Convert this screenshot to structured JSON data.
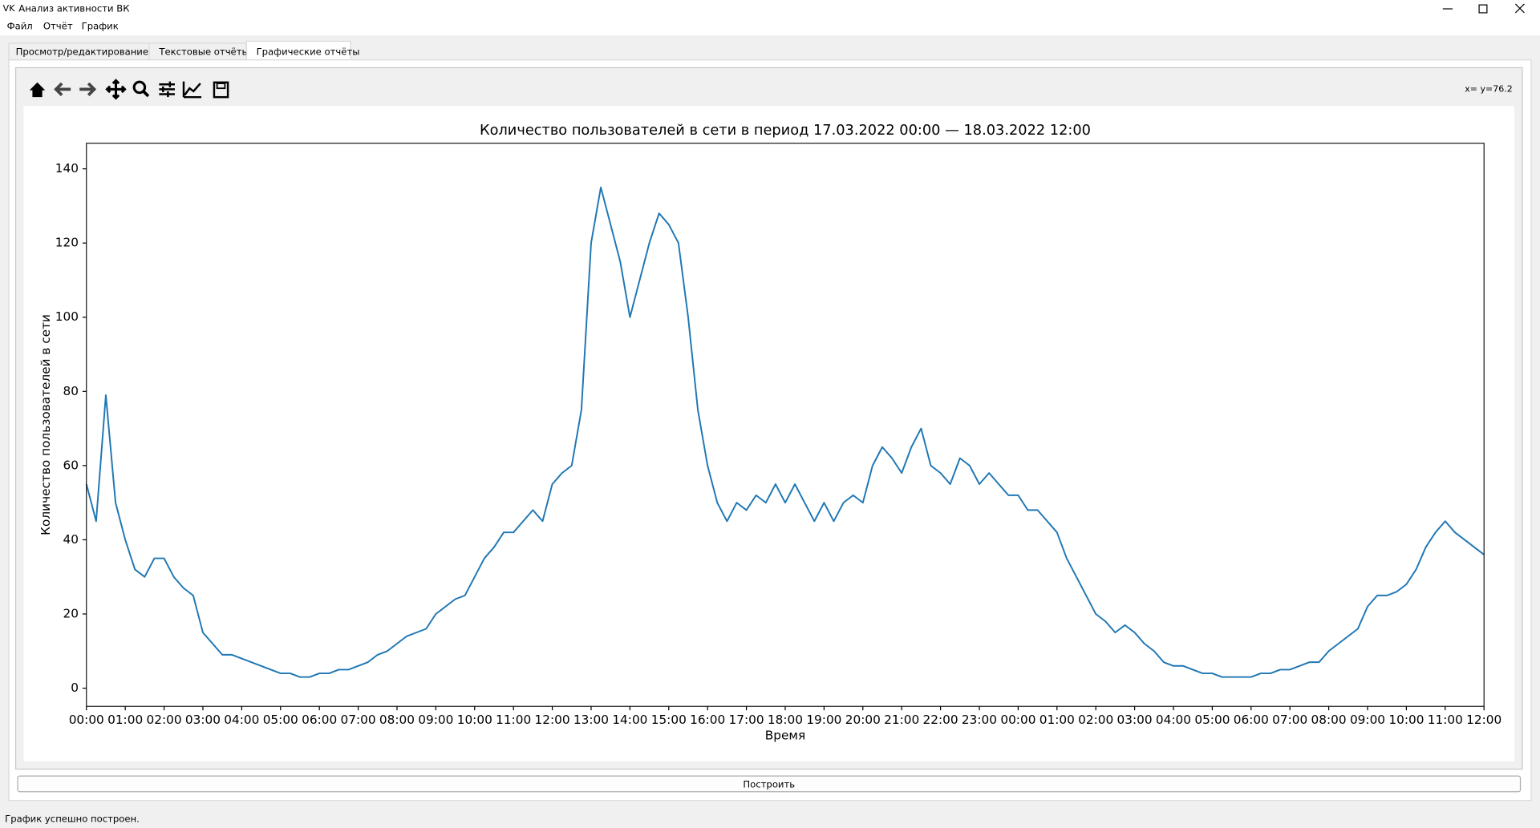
{
  "window": {
    "title": "Анализ активности ВК"
  },
  "menu": [
    "Файл",
    "Отчёт",
    "График"
  ],
  "tabs": [
    "Просмотр/редактирование БД",
    "Текстовые отчёты",
    "Графические отчёты"
  ],
  "toolbar": {
    "coordinates": "x= y=76.2"
  },
  "chart_data": {
    "type": "line",
    "title": "Количество пользователей в сети в период 17.03.2022 00:00 — 18.03.2022 12:00",
    "xlabel": "Время",
    "ylabel": "Количество пользователей в сети",
    "color": "#1f77b4",
    "x": [
      0,
      0.25,
      0.5,
      0.75,
      1,
      1.25,
      1.5,
      1.75,
      2,
      2.25,
      2.5,
      2.75,
      3,
      3.25,
      3.5,
      3.75,
      4,
      4.25,
      4.5,
      4.75,
      5,
      5.25,
      5.5,
      5.75,
      6,
      6.25,
      6.5,
      6.75,
      7,
      7.25,
      7.5,
      7.75,
      8,
      8.25,
      8.5,
      8.75,
      9,
      9.25,
      9.5,
      9.75,
      10,
      10.25,
      10.5,
      10.75,
      11,
      11.25,
      11.5,
      11.75,
      12,
      12.25,
      12.5,
      12.75,
      13,
      13.25,
      13.5,
      13.75,
      14,
      14.25,
      14.5,
      14.75,
      15,
      15.25,
      15.5,
      15.75,
      16,
      16.25,
      16.5,
      16.75,
      17,
      17.25,
      17.5,
      17.75,
      18,
      18.25,
      18.5,
      18.75,
      19,
      19.25,
      19.5,
      19.75,
      20,
      20.25,
      20.5,
      20.75,
      21,
      21.25,
      21.5,
      21.75,
      22,
      22.25,
      22.5,
      22.75,
      23,
      23.25,
      23.5,
      23.75,
      24,
      24.25,
      24.5,
      24.75,
      25,
      25.25,
      25.5,
      25.75,
      26,
      26.25,
      26.5,
      26.75,
      27,
      27.25,
      27.5,
      27.75,
      28,
      28.25,
      28.5,
      28.75,
      29,
      29.25,
      29.5,
      29.75,
      30,
      30.25,
      30.5,
      30.75,
      31,
      31.25,
      31.5,
      31.75,
      32,
      32.25,
      32.5,
      32.75,
      33,
      33.25,
      33.5,
      33.75,
      34,
      34.25,
      34.5,
      34.75,
      35,
      35.25,
      35.5,
      35.75,
      36
    ],
    "values": [
      55,
      45,
      79,
      50,
      40,
      32,
      30,
      35,
      35,
      30,
      27,
      25,
      15,
      12,
      9,
      9,
      8,
      7,
      6,
      5,
      4,
      4,
      3,
      3,
      4,
      4,
      5,
      5,
      6,
      7,
      9,
      10,
      12,
      14,
      15,
      16,
      20,
      22,
      24,
      25,
      30,
      35,
      38,
      42,
      42,
      45,
      48,
      45,
      55,
      58,
      60,
      75,
      120,
      135,
      125,
      115,
      100,
      110,
      120,
      128,
      125,
      120,
      100,
      75,
      60,
      50,
      45,
      50,
      48,
      52,
      50,
      55,
      50,
      55,
      50,
      45,
      50,
      45,
      50,
      52,
      50,
      60,
      65,
      62,
      58,
      65,
      70,
      60,
      58,
      55,
      62,
      60,
      55,
      58,
      55,
      52,
      52,
      48,
      48,
      45,
      42,
      35,
      30,
      25,
      20,
      18,
      15,
      17,
      15,
      12,
      10,
      7,
      6,
      6,
      5,
      4,
      4,
      3,
      3,
      3,
      3,
      4,
      4,
      5,
      5,
      6,
      7,
      7,
      10,
      12,
      14,
      16,
      22,
      25,
      25,
      26,
      28,
      32,
      38,
      42,
      45,
      42,
      40,
      38,
      36
    ],
    "xlim": [
      0,
      36
    ],
    "ylim": [
      -4.9,
      146.9
    ],
    "xticks": [
      {
        "value": 0,
        "label": "00:00"
      },
      {
        "value": 1,
        "label": "01:00"
      },
      {
        "value": 2,
        "label": "02:00"
      },
      {
        "value": 3,
        "label": "03:00"
      },
      {
        "value": 4,
        "label": "04:00"
      },
      {
        "value": 5,
        "label": "05:00"
      },
      {
        "value": 6,
        "label": "06:00"
      },
      {
        "value": 7,
        "label": "07:00"
      },
      {
        "value": 8,
        "label": "08:00"
      },
      {
        "value": 9,
        "label": "09:00"
      },
      {
        "value": 10,
        "label": "10:00"
      },
      {
        "value": 11,
        "label": "11:00"
      },
      {
        "value": 12,
        "label": "12:00"
      },
      {
        "value": 13,
        "label": "13:00"
      },
      {
        "value": 14,
        "label": "14:00"
      },
      {
        "value": 15,
        "label": "15:00"
      },
      {
        "value": 16,
        "label": "16:00"
      },
      {
        "value": 17,
        "label": "17:00"
      },
      {
        "value": 18,
        "label": "18:00"
      },
      {
        "value": 19,
        "label": "19:00"
      },
      {
        "value": 20,
        "label": "20:00"
      },
      {
        "value": 21,
        "label": "21:00"
      },
      {
        "value": 22,
        "label": "22:00"
      },
      {
        "value": 23,
        "label": "23:00"
      },
      {
        "value": 24,
        "label": "00:00"
      },
      {
        "value": 25,
        "label": "01:00"
      },
      {
        "value": 26,
        "label": "02:00"
      },
      {
        "value": 27,
        "label": "03:00"
      },
      {
        "value": 28,
        "label": "04:00"
      },
      {
        "value": 29,
        "label": "05:00"
      },
      {
        "value": 30,
        "label": "06:00"
      },
      {
        "value": 31,
        "label": "07:00"
      },
      {
        "value": 32,
        "label": "08:00"
      },
      {
        "value": 33,
        "label": "09:00"
      },
      {
        "value": 34,
        "label": "10:00"
      },
      {
        "value": 35,
        "label": "11:00"
      },
      {
        "value": 36,
        "label": "12:00"
      }
    ],
    "yticks": [
      0,
      20,
      40,
      60,
      80,
      100,
      120,
      140
    ],
    "grid": false
  },
  "button": "Построить",
  "status": "График успешно построен."
}
